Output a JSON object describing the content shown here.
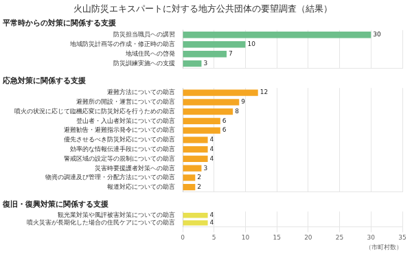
{
  "chart_data": [
    {
      "type": "bar",
      "orientation": "horizontal",
      "title": "火山防災エキスパートに対する地方公共団体の要望調査（結果）",
      "subtitle": "平常時からの対策に関係する支援",
      "categories": [
        "防災担当職員への講習",
        "地域防災計画等の作成・修正時の助言",
        "地域住民への啓発",
        "防災訓練実施への支援"
      ],
      "values": [
        30,
        10,
        7,
        3
      ],
      "color": "#6dbf8b",
      "xlim": [
        0,
        35
      ],
      "xticks": [
        0,
        5,
        10,
        15,
        20,
        25,
        30,
        35
      ],
      "grid": true,
      "data_labels": true,
      "tick_labels": "y"
    },
    {
      "type": "bar",
      "orientation": "horizontal",
      "subtitle": "応急対策に関係する支援",
      "categories": [
        "避難方法についての助言",
        "避難所の開設・運営についての助言",
        "噴火の状況に応じて臨機応変に防災対応を行うための助言",
        "登山者・入山者対策についての助言",
        "避難勧告・避難指示発令についての助言",
        "優先させるべき防災対応についての助言",
        "効率的な情報伝達手段についての助言",
        "警戒区域の設定等の規制についての助言",
        "災害時要援護者対策への助言",
        "物資の調達及び管理・分配方法についての助言",
        "報道対応についての助言"
      ],
      "values": [
        12,
        9,
        8,
        6,
        6,
        4,
        4,
        4,
        3,
        2,
        2
      ],
      "color": "#f5a623",
      "xlim": [
        0,
        35
      ],
      "xticks": [
        0,
        5,
        10,
        15,
        20,
        25,
        30,
        35
      ],
      "grid": true,
      "data_labels": true,
      "tick_labels": "y"
    },
    {
      "type": "bar",
      "orientation": "horizontal",
      "subtitle": "復旧・復興対策に関係する支援",
      "xlabel": "（市町村数）",
      "categories": [
        "観光業対策や風評被害対策についての助言",
        "噴火災害が長期化した場合の住民ケアについての助言"
      ],
      "values": [
        4,
        4
      ],
      "color": "#e8e050",
      "xlim": [
        0,
        35
      ],
      "xticks": [
        0,
        5,
        10,
        15,
        20,
        25,
        30,
        35
      ],
      "grid": true,
      "data_labels": true
    }
  ]
}
